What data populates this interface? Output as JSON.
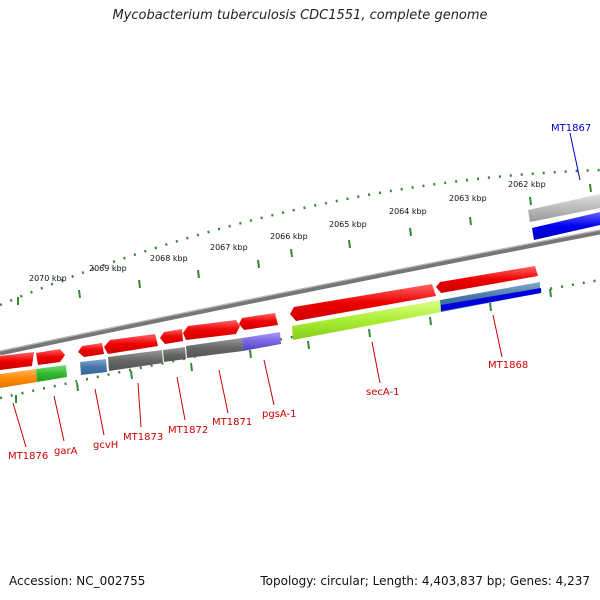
{
  "title": "Mycobacterium tuberculosis CDC1551, complete genome",
  "footer": {
    "accession": "Accession: NC_002755",
    "topology": "Topology: circular; Length: 4,403,837 bp; Genes: 4,237"
  },
  "ticks": {
    "kbp_labels": [
      "2070 kbp",
      "2069 kbp",
      "2068 kbp",
      "2067 kbp",
      "2066 kbp",
      "2065 kbp",
      "2064 kbp",
      "2063 kbp",
      "2062 kbp"
    ]
  },
  "gene_labels": {
    "mt1867": "MT1867",
    "mt1868": "MT1868",
    "seca1": "secA-1",
    "pgsa1": "pgsA-1",
    "mt1871": "MT1871",
    "mt1872": "MT1872",
    "mt1873": "MT1873",
    "gcvh": "gcvH",
    "gara": "garA",
    "mt1876": "MT1876"
  },
  "colors": {
    "forward_gene": "#ff0000",
    "reverse_gene_label": "#0000cc",
    "tick": "#338833",
    "backbone": "#777777",
    "cog_dark": "#666666",
    "cog_lime": "#aaee33",
    "cog_blue": "#0000ee",
    "cog_steel": "#4477aa",
    "cog_purple": "#7766dd",
    "cog_orange": "#ff8800",
    "cog_green": "#33bb33",
    "cog_grey": "#bbbbbb"
  }
}
